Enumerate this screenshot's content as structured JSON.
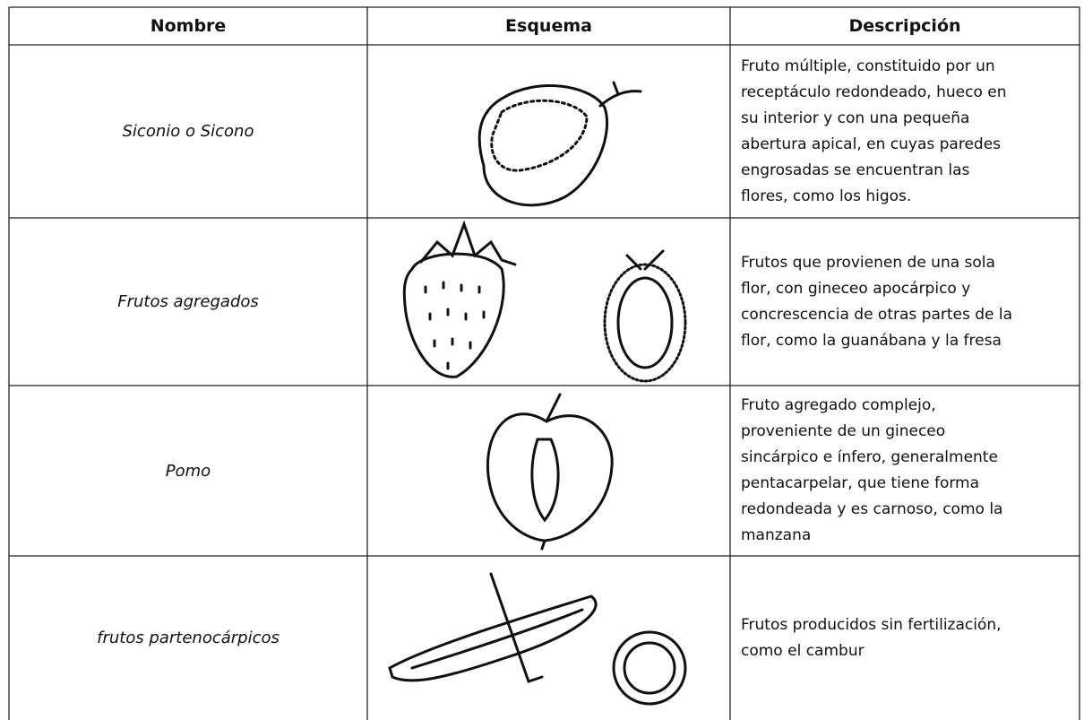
{
  "table": {
    "header": [
      "Nombre",
      "Esquema",
      "Descripción"
    ],
    "rows": [
      {
        "name": "Siconio o Sicono",
        "description": [
          "Fruto múltiple, constituido por un",
          "receptáculo redondeado, hueco en",
          "su interior y con una pequeña",
          "abertura apical, en cuyas paredes",
          "engrosadas se encuentran las",
          "flores, como los higos."
        ]
      },
      {
        "name": "Frutos agregados",
        "description": [
          "Frutos que provienen de una sola",
          "flor, con gineceo apocárpico y",
          "concrescencia de otras partes de la",
          "flor, como la guanábana y la fresa"
        ]
      },
      {
        "name": "Pomo",
        "description": [
          "Fruto agregado complejo,",
          "proveniente de un gineceo",
          "sincárpico e ínfero, generalmente",
          "pentacarpelar, que tiene forma",
          "redondeada y es carnoso, como la",
          "manzana"
        ]
      },
      {
        "name": "frutos partenocárpicos",
        "description": [
          "Frutos producidos sin fertilización,",
          "como el cambur"
        ]
      }
    ]
  }
}
